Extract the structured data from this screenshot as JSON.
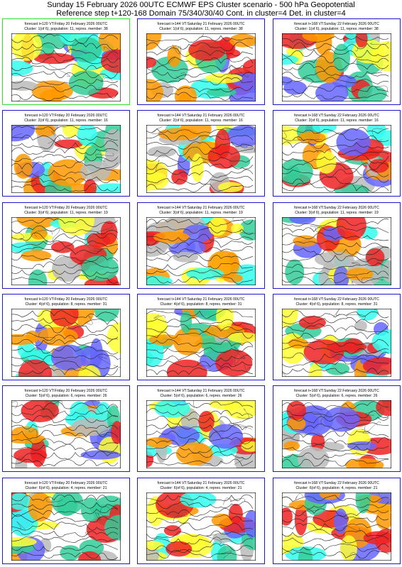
{
  "header": {
    "title": [
      "Sunday 15 February 2026 00UTC ECMWF EPS Cluster scenario - 500 hPa Geopotential",
      "Reference step t+120-168 Domain 75/340/30/40 Cont. in cluster=4 Det. in cluster=4"
    ]
  },
  "panels": [
    {
      "forecast": "forecast t+120 VT:Friday 20 February 2026 00UTC",
      "cluster": "Cluster: 1(of 6), population: 11, repres. member: 38"
    },
    {
      "forecast": "forecast t+144 VT:Saturday 21 February 2026 00UTC",
      "cluster": "Cluster: 1(of 6), population: 11, repres. member: 38"
    },
    {
      "forecast": "forecast t+168 VT:Sunday 22 February 2026 00UTC",
      "cluster": "Cluster: 1(of 6), population: 11, repres. member: 38"
    },
    {
      "forecast": "forecast t+120 VT:Friday 20 February 2026 00UTC",
      "cluster": "Cluster: 2(of 6), population: 11, repres. member: 16"
    },
    {
      "forecast": "forecast t+144 VT:Saturday 21 February 2026 00UTC",
      "cluster": "Cluster: 2(of 6), population: 11, repres. member: 16"
    },
    {
      "forecast": "forecast t+168 VT:Sunday 22 February 2026 00UTC",
      "cluster": "Cluster: 2(of 6), population: 11, repres. member: 16"
    },
    {
      "forecast": "forecast t+120 VT:Friday 20 February 2026 00UTC",
      "cluster": "Cluster: 3(of 6), population: 11, repres. member: 19"
    },
    {
      "forecast": "forecast t+144 VT:Saturday 21 February 2026 00UTC",
      "cluster": "Cluster: 3(of 6), population: 11, repres. member: 19"
    },
    {
      "forecast": "forecast t+168 VT:Sunday 22 February 2026 00UTC",
      "cluster": "Cluster: 3(of 6), population: 11, repres. member: 19"
    },
    {
      "forecast": "forecast t+120 VT:Friday 20 February 2026 00UTC",
      "cluster": "Cluster: 4(of 6), population: 8, repres. member: 31"
    },
    {
      "forecast": "forecast t+144 VT:Saturday 21 February 2026 00UTC",
      "cluster": "Cluster: 4(of 6), population: 8, repres. member: 31"
    },
    {
      "forecast": "forecast t+168 VT:Sunday 22 February 2026 00UTC",
      "cluster": "Cluster: 4(of 6), population: 8, repres. member: 31"
    },
    {
      "forecast": "forecast t+120 VT:Friday 20 February 2026 00UTC",
      "cluster": "Cluster: 5(of 6), population: 6, repres. member: 26"
    },
    {
      "forecast": "forecast t+144 VT:Saturday 21 February 2026 00UTC",
      "cluster": "Cluster: 5(of 6), population: 6, repres. member: 26"
    },
    {
      "forecast": "forecast t+168 VT:Sunday 22 February 2026 00UTC",
      "cluster": "Cluster: 5(of 6), population: 6, repres. member: 26"
    },
    {
      "forecast": "forecast t+120 VT:Friday 20 February 2026 00UTC",
      "cluster": "Cluster: 6(of 6), population: 4, repres. member: 21"
    },
    {
      "forecast": "forecast t+144 VT:Saturday 21 February 2026 00UTC",
      "cluster": "Cluster: 6(of 6), population: 4, repres. member: 21"
    },
    {
      "forecast": "forecast t+168 VT:Sunday 22 February 2026 00UTC",
      "cluster": "Cluster: 6(of 6), population: 4, repres. member: 21"
    }
  ]
}
